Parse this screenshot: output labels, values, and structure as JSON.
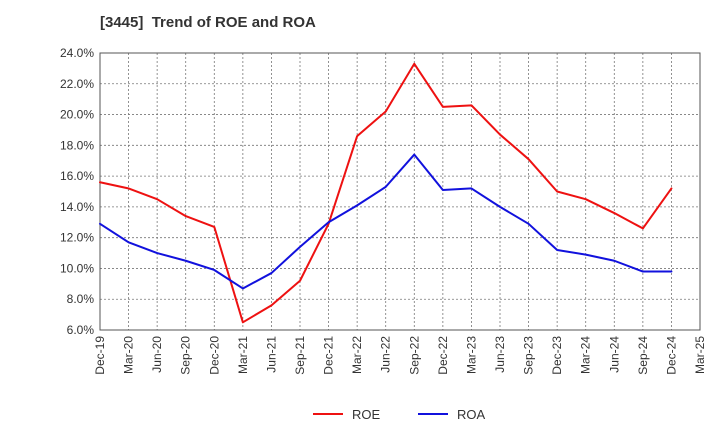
{
  "chart_data": {
    "type": "line",
    "title": "[3445]  Trend of ROE and ROA",
    "xlabel": "",
    "ylabel": "",
    "x": [
      "Dec-19",
      "Mar-20",
      "Jun-20",
      "Sep-20",
      "Dec-20",
      "Mar-21",
      "Jun-21",
      "Sep-21",
      "Dec-21",
      "Mar-22",
      "Jun-22",
      "Sep-22",
      "Dec-22",
      "Mar-23",
      "Jun-23",
      "Sep-23",
      "Dec-23",
      "Mar-24",
      "Jun-24",
      "Sep-24",
      "Dec-24",
      "Mar-25"
    ],
    "ylim": [
      6.0,
      24.0
    ],
    "yticks": [
      "6.0%",
      "8.0%",
      "10.0%",
      "12.0%",
      "14.0%",
      "16.0%",
      "18.0%",
      "20.0%",
      "22.0%",
      "24.0%"
    ],
    "grid": true,
    "legend_position": "bottom",
    "series": [
      {
        "name": "ROE",
        "color": "#ee1111",
        "values": [
          15.6,
          15.2,
          14.5,
          13.4,
          12.7,
          6.5,
          7.6,
          9.2,
          12.9,
          18.6,
          20.2,
          23.3,
          20.5,
          20.6,
          18.7,
          17.1,
          15.0,
          14.5,
          13.6,
          12.6,
          15.2,
          null
        ]
      },
      {
        "name": "ROA",
        "color": "#1111dd",
        "values": [
          12.9,
          11.7,
          11.0,
          10.5,
          9.9,
          8.7,
          9.7,
          11.4,
          13.0,
          14.1,
          15.3,
          17.4,
          15.1,
          15.2,
          14.0,
          12.9,
          11.2,
          10.9,
          10.5,
          9.8,
          9.8,
          null
        ]
      }
    ]
  }
}
